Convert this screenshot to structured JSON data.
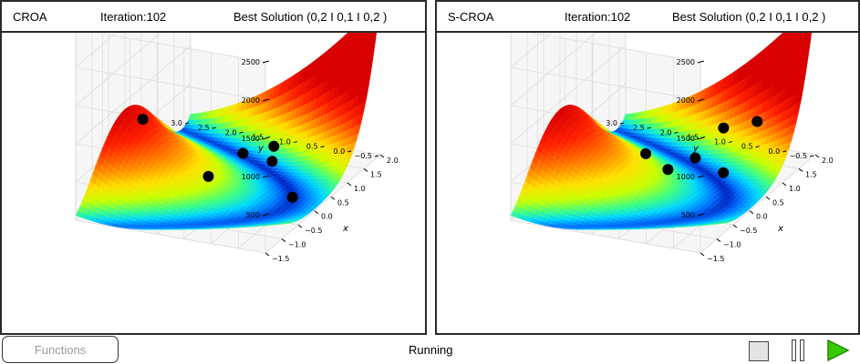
{
  "panels": [
    {
      "title": "CROA",
      "iteration": "Iteration:102",
      "best": "Best Solution  (0,2 I 0,1 I 0,2 )",
      "points": [
        {
          "x": 0.05,
          "y": 2.7
        },
        {
          "x": -0.1,
          "y": 1.4
        },
        {
          "x": 1.2,
          "y": 1.55
        },
        {
          "x": 1.4,
          "y": 1.1
        },
        {
          "x": 1.1,
          "y": 0.95
        },
        {
          "x": 0.15,
          "y": 0.0
        }
      ]
    },
    {
      "title": "S-CROA",
      "iteration": "Iteration:102",
      "best": "Best Solution  (0,2 I 0,1 I 0,2 )",
      "points": [
        {
          "x": 0.55,
          "y": 1.75
        },
        {
          "x": 0.4,
          "y": 1.25
        },
        {
          "x": 1.15,
          "y": 1.2
        },
        {
          "x": 1.6,
          "y": 0.95
        },
        {
          "x": 0.85,
          "y": 0.5
        },
        {
          "x": 1.55,
          "y": 0.3
        }
      ]
    }
  ],
  "axes": {
    "x_label": "x",
    "y_label": "y",
    "x_ticks": [
      "−1.5",
      "−1.0",
      "−0.5",
      "0.0",
      "0.5",
      "1.0",
      "1.5",
      "2.0"
    ],
    "y_ticks": [
      "−0.5",
      "0.0",
      "0.5",
      "1.0",
      "1.5",
      "2.0",
      "2.5",
      "3.0"
    ],
    "z_ticks": [
      "500",
      "1000",
      "1500",
      "2000",
      "2500"
    ],
    "x_range": [
      -1.5,
      2.0
    ],
    "y_range": [
      -0.5,
      3.0
    ],
    "z_range": [
      0,
      2500
    ],
    "colormap": [
      "#0000a0",
      "#0070ff",
      "#00d8ff",
      "#40ff80",
      "#c8ff00",
      "#ffe000",
      "#ff8000",
      "#ff2000",
      "#d80000"
    ]
  },
  "footer": {
    "functions_label": "Functions",
    "status": "Running"
  },
  "controls": {
    "stop_icon": "stop-icon",
    "pause_icon": "pause-icon",
    "play_icon": "play-icon",
    "play_color": "#33cc00"
  }
}
